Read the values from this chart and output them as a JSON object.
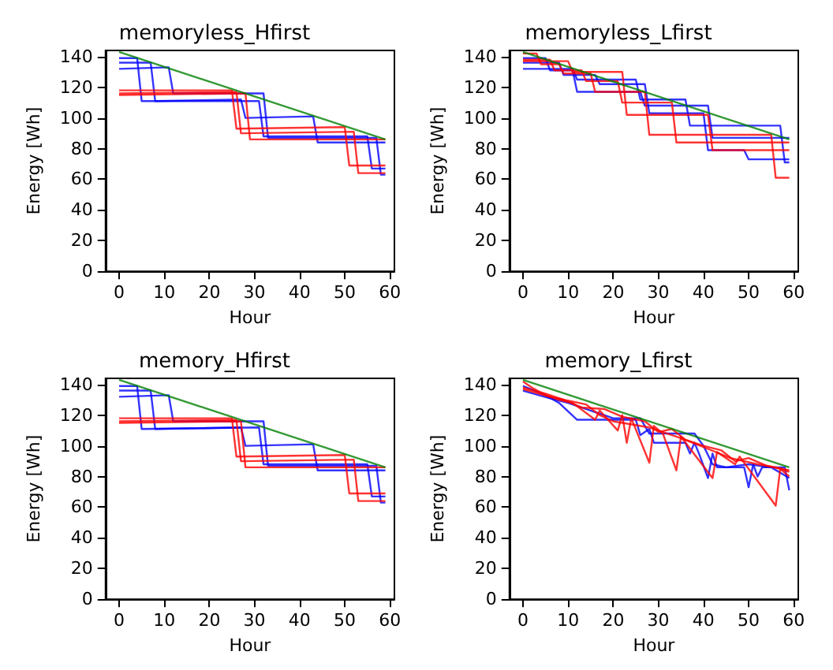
{
  "chart_data": [
    {
      "type": "line",
      "title": "memoryless_Hfirst",
      "xlabel": "Hour",
      "ylabel": "Energy [Wh]",
      "xlim": [
        -3,
        61
      ],
      "ylim": [
        0,
        144
      ],
      "xticks": [
        0,
        10,
        20,
        30,
        40,
        50,
        60
      ],
      "yticks": [
        0,
        20,
        40,
        60,
        80,
        100,
        120,
        140
      ],
      "series": [
        {
          "color": "#0000ff",
          "x": [
            0,
            4,
            5,
            31,
            32,
            55,
            56,
            59
          ],
          "values": [
            139,
            139,
            111,
            111,
            88,
            88,
            67,
            67
          ]
        },
        {
          "color": "#0000ff",
          "x": [
            0,
            7,
            8,
            27,
            28,
            43,
            44,
            59
          ],
          "values": [
            136,
            136,
            111,
            112,
            100,
            101,
            84,
            84
          ]
        },
        {
          "color": "#0000ff",
          "x": [
            0,
            11,
            12,
            32,
            33,
            57,
            58,
            59
          ],
          "values": [
            132,
            133,
            116,
            116,
            87,
            87,
            63,
            63
          ]
        },
        {
          "color": "#ff0000",
          "x": [
            0,
            25,
            26,
            50,
            51,
            59
          ],
          "values": [
            118,
            118,
            93,
            94,
            69,
            69
          ]
        },
        {
          "color": "#ff0000",
          "x": [
            0,
            26,
            27,
            52,
            53,
            59
          ],
          "values": [
            116,
            117,
            90,
            91,
            64,
            64
          ]
        },
        {
          "color": "#ff0000",
          "x": [
            0,
            28,
            29,
            59
          ],
          "values": [
            115,
            116,
            86,
            86
          ]
        },
        {
          "color": "#008000",
          "x": [
            0,
            59
          ],
          "values": [
            143,
            86
          ]
        }
      ]
    },
    {
      "type": "line",
      "title": "memoryless_Lfirst",
      "xlabel": "Hour",
      "ylabel": "Energy [Wh]",
      "xlim": [
        -3,
        61
      ],
      "ylim": [
        0,
        144
      ],
      "xticks": [
        0,
        10,
        20,
        30,
        40,
        50,
        60
      ],
      "yticks": [
        0,
        20,
        40,
        60,
        80,
        100,
        120,
        140
      ],
      "series": [
        {
          "color": "#0000ff",
          "x": [
            0,
            5,
            6,
            11,
            12,
            26,
            27,
            41,
            42,
            59
          ],
          "values": [
            139,
            139,
            131,
            131,
            117,
            117,
            108,
            108,
            87,
            87
          ]
        },
        {
          "color": "#0000ff",
          "x": [
            0,
            8,
            9,
            16,
            17,
            27,
            28,
            40,
            41,
            49,
            50,
            59
          ],
          "values": [
            136,
            136,
            128,
            128,
            122,
            122,
            103,
            103,
            79,
            79,
            73,
            73
          ]
        },
        {
          "color": "#0000ff",
          "x": [
            0,
            11,
            12,
            25,
            26,
            36,
            37,
            57,
            58,
            59
          ],
          "values": [
            132,
            132,
            125,
            125,
            112,
            112,
            95,
            95,
            71,
            71
          ]
        },
        {
          "color": "#ff0000",
          "x": [
            0,
            3,
            4,
            8,
            9,
            15,
            16,
            27,
            28,
            55,
            56,
            59
          ],
          "values": [
            142,
            142,
            135,
            135,
            129,
            129,
            117,
            117,
            89,
            89,
            61,
            61
          ]
        },
        {
          "color": "#ff0000",
          "x": [
            0,
            6,
            7,
            13,
            14,
            21,
            22,
            33,
            34,
            59
          ],
          "values": [
            138,
            138,
            131,
            131,
            124,
            124,
            110,
            110,
            84,
            84
          ]
        },
        {
          "color": "#ff0000",
          "x": [
            0,
            10,
            11,
            22,
            23,
            41,
            42,
            59
          ],
          "values": [
            137,
            137,
            130,
            130,
            102,
            102,
            79,
            79
          ]
        },
        {
          "color": "#008000",
          "x": [
            0,
            59
          ],
          "values": [
            143,
            86
          ]
        }
      ]
    },
    {
      "type": "line",
      "title": "memory_Hfirst",
      "xlabel": "Hour",
      "ylabel": "Energy [Wh]",
      "xlim": [
        -3,
        61
      ],
      "ylim": [
        0,
        144
      ],
      "xticks": [
        0,
        10,
        20,
        30,
        40,
        50,
        60
      ],
      "yticks": [
        0,
        20,
        40,
        60,
        80,
        100,
        120,
        140
      ],
      "series": [
        {
          "color": "#0000ff",
          "x": [
            0,
            4,
            5,
            31,
            32,
            55,
            56,
            59
          ],
          "values": [
            139,
            139,
            111,
            112,
            88,
            88,
            67,
            67
          ]
        },
        {
          "color": "#0000ff",
          "x": [
            0,
            7,
            8,
            27,
            28,
            43,
            44,
            59
          ],
          "values": [
            136,
            136,
            111,
            112,
            100,
            101,
            84,
            84
          ]
        },
        {
          "color": "#0000ff",
          "x": [
            0,
            11,
            12,
            32,
            33,
            57,
            58,
            59
          ],
          "values": [
            132,
            133,
            116,
            116,
            87,
            87,
            63,
            63
          ]
        },
        {
          "color": "#ff0000",
          "x": [
            0,
            25,
            26,
            50,
            51,
            59
          ],
          "values": [
            118,
            118,
            93,
            94,
            69,
            69
          ]
        },
        {
          "color": "#ff0000",
          "x": [
            0,
            26,
            27,
            52,
            53,
            59
          ],
          "values": [
            116,
            117,
            90,
            91,
            64,
            64
          ]
        },
        {
          "color": "#ff0000",
          "x": [
            0,
            27,
            28,
            59
          ],
          "values": [
            115,
            116,
            86,
            86
          ]
        },
        {
          "color": "#008000",
          "x": [
            0,
            59
          ],
          "values": [
            143,
            86
          ]
        }
      ]
    },
    {
      "type": "line",
      "title": "memory_Lfirst",
      "xlabel": "Hour",
      "ylabel": "Energy [Wh]",
      "xlim": [
        -3,
        61
      ],
      "ylim": [
        0,
        144
      ],
      "xticks": [
        0,
        10,
        20,
        30,
        40,
        50,
        60
      ],
      "yticks": [
        0,
        20,
        40,
        60,
        80,
        100,
        120,
        140
      ],
      "series": [
        {
          "color": "#0000ff",
          "x": [
            0,
            5,
            8,
            12,
            25,
            26,
            28,
            29,
            36,
            37,
            38,
            39,
            41,
            42,
            43,
            49,
            50,
            51,
            52,
            53,
            58,
            59
          ],
          "values": [
            139,
            133,
            128,
            117,
            117,
            107,
            111,
            102,
            102,
            95,
            102,
            95,
            79,
            95,
            86,
            86,
            73,
            88,
            80,
            86,
            86,
            71
          ]
        },
        {
          "color": "#0000ff",
          "x": [
            0,
            6,
            10,
            16,
            20,
            26,
            28,
            38,
            40,
            42,
            45,
            50,
            55,
            59
          ],
          "values": [
            136,
            131,
            128,
            122,
            118,
            118,
            108,
            108,
            100,
            88,
            86,
            88,
            86,
            79
          ]
        },
        {
          "color": "#ff0000",
          "x": [
            0,
            2,
            5,
            8,
            11,
            16,
            17,
            21,
            22,
            23,
            24,
            28,
            29,
            31,
            34,
            35,
            42,
            43,
            47,
            48,
            56,
            57,
            59
          ],
          "values": [
            142,
            138,
            133,
            130,
            128,
            117,
            123,
            110,
            120,
            102,
            118,
            89,
            113,
            108,
            84,
            106,
            79,
            96,
            88,
            93,
            61,
            85,
            80
          ]
        },
        {
          "color": "#ff0000",
          "x": [
            0,
            5,
            9,
            13,
            18,
            22,
            27,
            30,
            33,
            36,
            40,
            44,
            47,
            50,
            54,
            57,
            59
          ],
          "values": [
            138,
            134,
            130,
            125,
            124,
            119,
            116,
            109,
            111,
            104,
            100,
            97,
            90,
            92,
            87,
            85,
            83
          ]
        },
        {
          "color": "#ff0000",
          "x": [
            0,
            6,
            14,
            17,
            20,
            28,
            35,
            41,
            46,
            52,
            56,
            59
          ],
          "values": [
            137,
            132,
            127,
            120,
            116,
            112,
            105,
            98,
            92,
            88,
            86,
            84
          ]
        },
        {
          "color": "#008000",
          "x": [
            0,
            59
          ],
          "values": [
            143,
            86
          ]
        }
      ]
    }
  ]
}
